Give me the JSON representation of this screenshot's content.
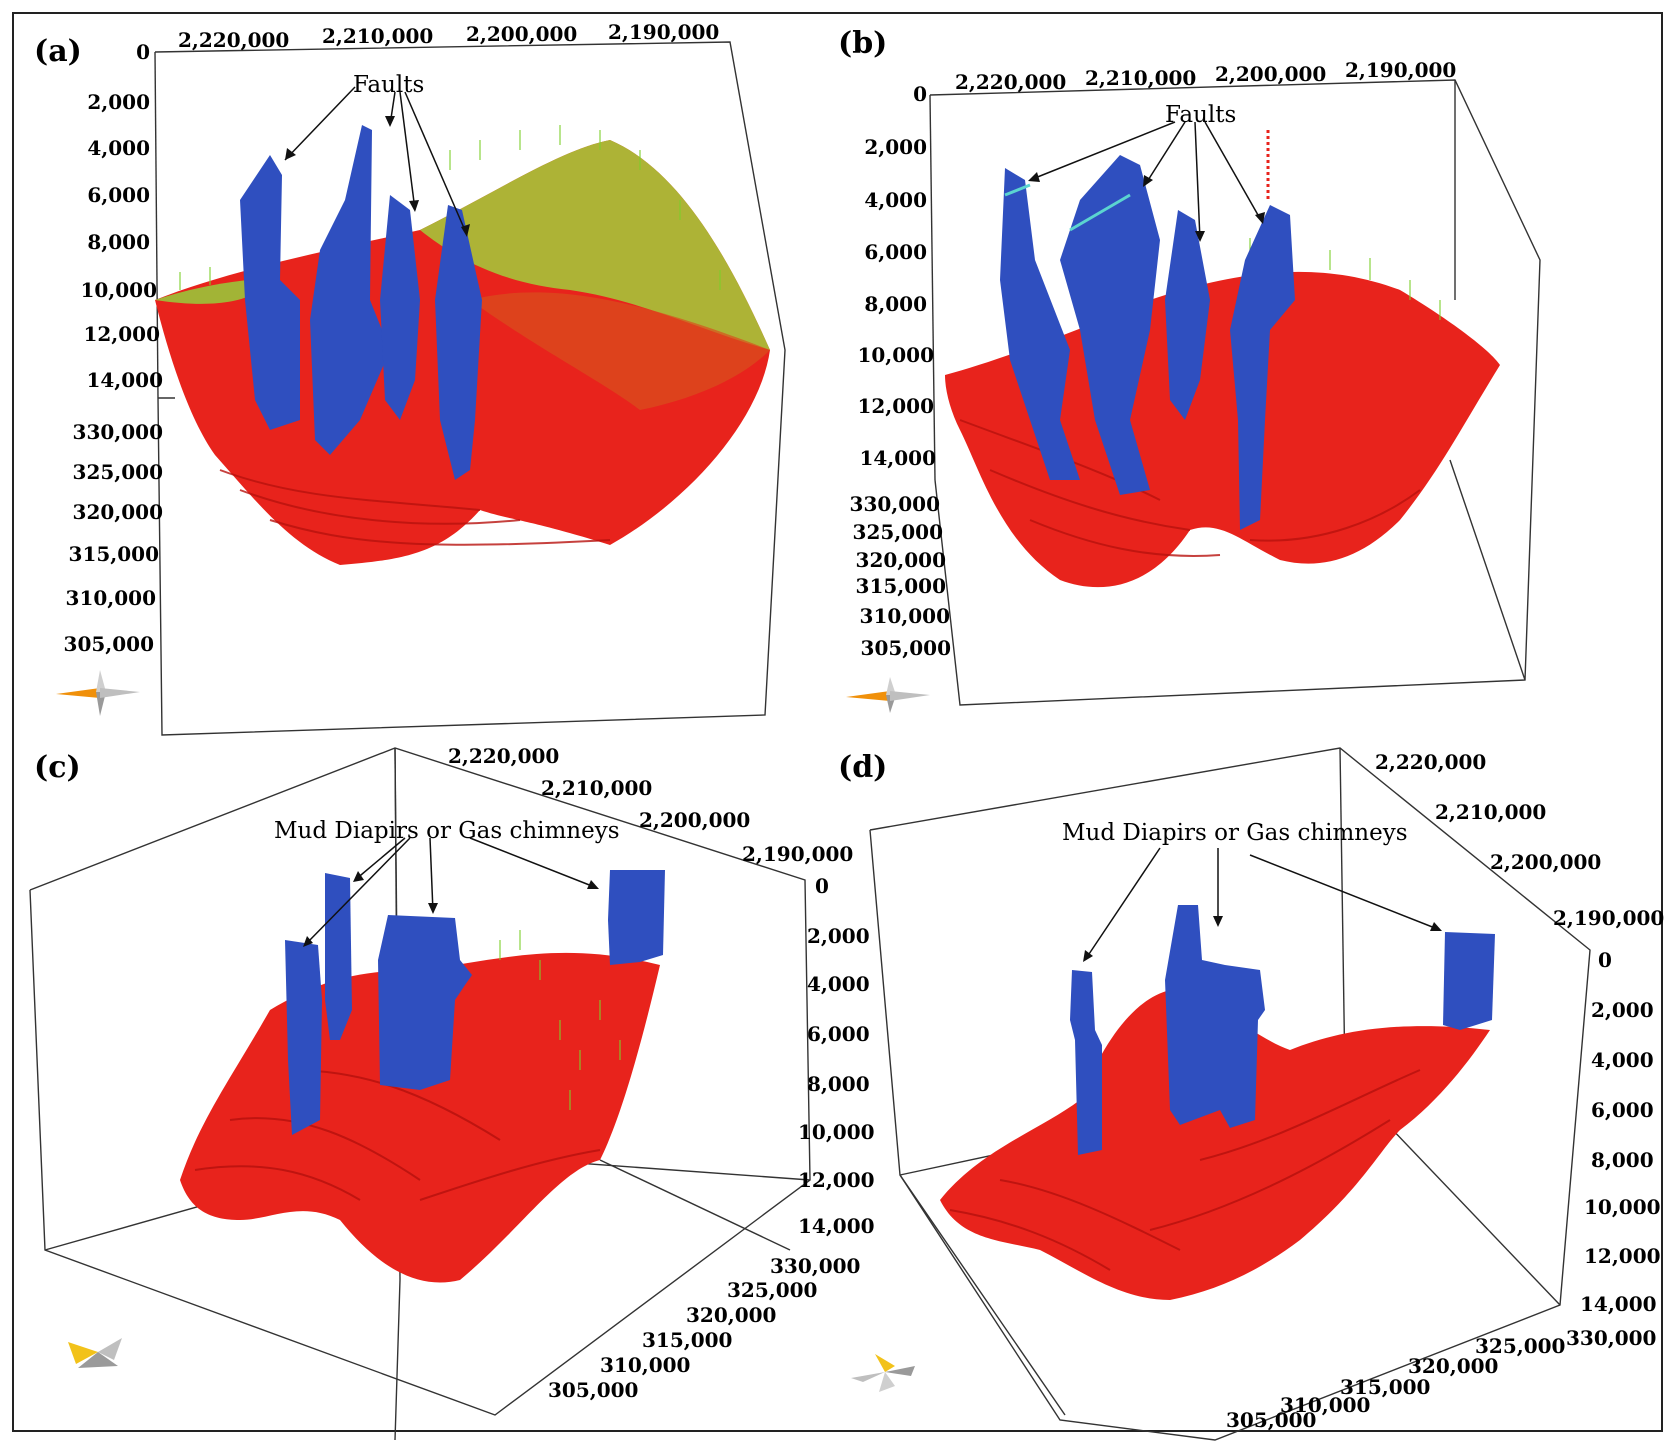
{
  "figure": {
    "panels": [
      {
        "label": "(a)",
        "annotation": "Faults",
        "x_ticks": [
          "2,220,000",
          "2,210,000",
          "2,200,000",
          "2,190,000"
        ],
        "depth_ticks": [
          "0",
          "2,000",
          "4,000",
          "6,000",
          "8,000",
          "10,000",
          "12,000",
          "14,000"
        ],
        "y_ticks": [
          "330,000",
          "325,000",
          "320,000",
          "315,000",
          "310,000",
          "305,000"
        ]
      },
      {
        "label": "(b)",
        "annotation": "Faults",
        "x_ticks": [
          "2,220,000",
          "2,210,000",
          "2,200,000",
          "2,190,000"
        ],
        "depth_ticks": [
          "0",
          "2,000",
          "4,000",
          "6,000",
          "8,000",
          "10,000",
          "12,000",
          "14,000"
        ],
        "y_ticks": [
          "330,000",
          "325,000",
          "320,000",
          "315,000",
          "310,000",
          "305,000"
        ]
      },
      {
        "label": "(c)",
        "annotation": "Mud Diapirs or Gas chimneys",
        "x_ticks": [
          "2,220,000",
          "2,210,000",
          "2,200,000",
          "2,190,000"
        ],
        "depth_ticks": [
          "0",
          "2,000",
          "4,000",
          "6,000",
          "8,000",
          "10,000",
          "12,000",
          "14,000"
        ],
        "y_ticks": [
          "330,000",
          "325,000",
          "320,000",
          "315,000",
          "310,000",
          "305,000"
        ]
      },
      {
        "label": "(d)",
        "annotation": "Mud Diapirs or Gas chimneys",
        "x_ticks": [
          "2,220,000",
          "2,210,000",
          "2,200,000",
          "2,190,000"
        ],
        "depth_ticks": [
          "0",
          "2,000",
          "4,000",
          "6,000",
          "8,000",
          "10,000",
          "12,000",
          "14,000"
        ],
        "y_ticks": [
          "330,000",
          "325,000",
          "320,000",
          "315,000",
          "310,000",
          "305,000"
        ]
      }
    ],
    "colors": {
      "horizon": "#e8231c",
      "horizon_dark": "#b8120e",
      "fault_body": "#2f4fbf",
      "vector_green": "#7ccf2a",
      "compass_orange": "#f0900a",
      "compass_yellow": "#f2c21a",
      "compass_gray": "#9a9a9a"
    },
    "icons": [
      "compass-icon"
    ]
  }
}
